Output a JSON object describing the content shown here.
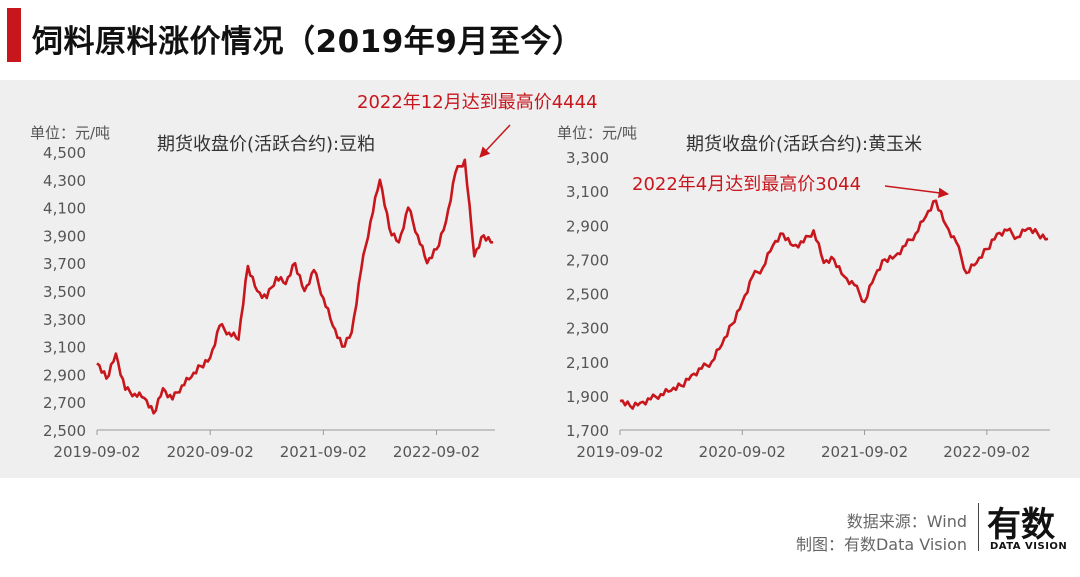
{
  "header": {
    "title": "饲料原料涨价情况（2019年9月至今）",
    "accent_color": "#c8161d"
  },
  "chart_data": [
    {
      "type": "line",
      "title": "期货收盘价(活跃合约):豆粕",
      "unit_label": "单位：元/吨",
      "annotation": "2022年12月达到最高价4444",
      "color": "#c8161d",
      "ylim": [
        2500,
        4500
      ],
      "yticks": [
        "2,500",
        "2,700",
        "2,900",
        "3,100",
        "3,300",
        "3,500",
        "3,700",
        "3,900",
        "4,100",
        "4,300",
        "4,500"
      ],
      "xticks": [
        "2019-09-02",
        "2020-09-02",
        "2021-09-02",
        "2022-09-02"
      ],
      "x": [
        "2019-09",
        "2019-10",
        "2019-11",
        "2019-12",
        "2020-01",
        "2020-02",
        "2020-03",
        "2020-04",
        "2020-05",
        "2020-06",
        "2020-07",
        "2020-08",
        "2020-09",
        "2020-10",
        "2020-11",
        "2020-12",
        "2021-01",
        "2021-02",
        "2021-03",
        "2021-04",
        "2021-05",
        "2021-06",
        "2021-07",
        "2021-08",
        "2021-09",
        "2021-10",
        "2021-11",
        "2021-12",
        "2022-01",
        "2022-02",
        "2022-03",
        "2022-04",
        "2022-05",
        "2022-06",
        "2022-07",
        "2022-08",
        "2022-09",
        "2022-10",
        "2022-11",
        "2022-12",
        "2023-01",
        "2023-02",
        "2023-03"
      ],
      "values": [
        2980,
        2870,
        3050,
        2790,
        2760,
        2730,
        2620,
        2800,
        2720,
        2820,
        2880,
        2960,
        3020,
        3250,
        3200,
        3150,
        3680,
        3500,
        3450,
        3600,
        3550,
        3700,
        3500,
        3650,
        3450,
        3250,
        3100,
        3200,
        3650,
        4000,
        4300,
        3950,
        3850,
        4100,
        3900,
        3700,
        3800,
        4000,
        4350,
        4444,
        3750,
        3900,
        3850
      ]
    },
    {
      "type": "line",
      "title": "期货收盘价(活跃合约):黄玉米",
      "unit_label": "单位：元/吨",
      "annotation": "2022年4月达到最高价3044",
      "color": "#c8161d",
      "ylim": [
        1700,
        3300
      ],
      "yticks": [
        "1,700",
        "1,900",
        "2,100",
        "2,300",
        "2,500",
        "2,700",
        "2,900",
        "3,100",
        "3,300"
      ],
      "xticks": [
        "2019-09-02",
        "2020-09-02",
        "2021-09-02",
        "2022-09-02"
      ],
      "x": [
        "2019-09",
        "2019-10",
        "2019-11",
        "2019-12",
        "2020-01",
        "2020-02",
        "2020-03",
        "2020-04",
        "2020-05",
        "2020-06",
        "2020-07",
        "2020-08",
        "2020-09",
        "2020-10",
        "2020-11",
        "2020-12",
        "2021-01",
        "2021-02",
        "2021-03",
        "2021-04",
        "2021-05",
        "2021-06",
        "2021-07",
        "2021-08",
        "2021-09",
        "2021-10",
        "2021-11",
        "2021-12",
        "2022-01",
        "2022-02",
        "2022-03",
        "2022-04",
        "2022-05",
        "2022-06",
        "2022-07",
        "2022-08",
        "2022-09",
        "2022-10",
        "2022-11",
        "2022-12",
        "2023-01",
        "2023-02",
        "2023-03"
      ],
      "values": [
        1870,
        1840,
        1860,
        1880,
        1910,
        1930,
        1960,
        2020,
        2060,
        2100,
        2200,
        2320,
        2450,
        2600,
        2650,
        2780,
        2850,
        2780,
        2800,
        2870,
        2680,
        2700,
        2600,
        2550,
        2450,
        2600,
        2700,
        2720,
        2780,
        2850,
        2950,
        3044,
        2900,
        2800,
        2620,
        2680,
        2760,
        2850,
        2870,
        2830,
        2880,
        2850,
        2820
      ]
    }
  ],
  "footer": {
    "source": "数据来源：Wind",
    "credit": "制图：有数Data Vision"
  },
  "logo": {
    "main": "有数",
    "sub": "DATA VISION"
  }
}
